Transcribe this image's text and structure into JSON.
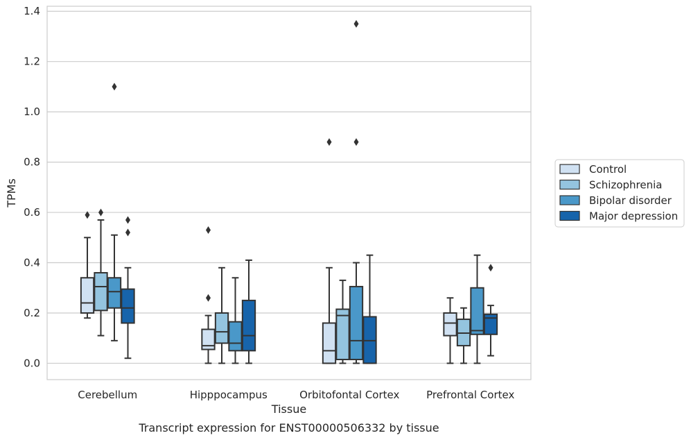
{
  "chart_data": {
    "type": "box",
    "title": "",
    "caption": "Transcript expression for ENST00000506332 by tissue",
    "xlabel": "Tissue",
    "ylabel": "TPMs",
    "ylim": [
      -0.065,
      1.42
    ],
    "yticks": [
      0.0,
      0.2,
      0.4,
      0.6,
      0.8,
      1.0,
      1.2,
      1.4
    ],
    "ytick_labels": [
      "0.0",
      "0.2",
      "0.4",
      "0.6",
      "0.8",
      "1.0",
      "1.2",
      "1.4"
    ],
    "grid": "horizontal",
    "legend_position": "outside-right",
    "categories": [
      "Cerebellum",
      "Hipppocampus",
      "Orbitofontal Cortex",
      "Prefrontal Cortex"
    ],
    "series": [
      {
        "name": "Control",
        "color": "#d0e1f2",
        "boxes": [
          {
            "whisker_low": 0.18,
            "q1": 0.2,
            "median": 0.24,
            "q3": 0.34,
            "whisker_high": 0.5,
            "outliers": [
              0.59
            ]
          },
          {
            "whisker_low": 0.0,
            "q1": 0.055,
            "median": 0.07,
            "q3": 0.135,
            "whisker_high": 0.19,
            "outliers": [
              0.26,
              0.53
            ]
          },
          {
            "whisker_low": 0.0,
            "q1": 0.0,
            "median": 0.05,
            "q3": 0.16,
            "whisker_high": 0.38,
            "outliers": [
              0.88
            ]
          },
          {
            "whisker_low": 0.0,
            "q1": 0.11,
            "median": 0.16,
            "q3": 0.2,
            "whisker_high": 0.26,
            "outliers": []
          }
        ]
      },
      {
        "name": "Schizophrenia",
        "color": "#94c4df",
        "boxes": [
          {
            "whisker_low": 0.11,
            "q1": 0.21,
            "median": 0.305,
            "q3": 0.36,
            "whisker_high": 0.57,
            "outliers": [
              0.6
            ]
          },
          {
            "whisker_low": 0.0,
            "q1": 0.08,
            "median": 0.125,
            "q3": 0.2,
            "whisker_high": 0.38,
            "outliers": []
          },
          {
            "whisker_low": 0.0,
            "q1": 0.015,
            "median": 0.19,
            "q3": 0.215,
            "whisker_high": 0.33,
            "outliers": []
          },
          {
            "whisker_low": 0.0,
            "q1": 0.07,
            "median": 0.12,
            "q3": 0.175,
            "whisker_high": 0.22,
            "outliers": []
          }
        ]
      },
      {
        "name": "Bipolar disorder",
        "color": "#4a98c9",
        "boxes": [
          {
            "whisker_low": 0.09,
            "q1": 0.22,
            "median": 0.285,
            "q3": 0.34,
            "whisker_high": 0.51,
            "outliers": [
              1.1
            ]
          },
          {
            "whisker_low": 0.0,
            "q1": 0.05,
            "median": 0.08,
            "q3": 0.165,
            "whisker_high": 0.34,
            "outliers": []
          },
          {
            "whisker_low": 0.0,
            "q1": 0.015,
            "median": 0.09,
            "q3": 0.305,
            "whisker_high": 0.4,
            "outliers": [
              0.88,
              1.35
            ]
          },
          {
            "whisker_low": 0.0,
            "q1": 0.115,
            "median": 0.13,
            "q3": 0.3,
            "whisker_high": 0.43,
            "outliers": []
          }
        ]
      },
      {
        "name": "Major depression",
        "color": "#1764ab",
        "boxes": [
          {
            "whisker_low": 0.02,
            "q1": 0.16,
            "median": 0.22,
            "q3": 0.295,
            "whisker_high": 0.38,
            "outliers": [
              0.52,
              0.57
            ]
          },
          {
            "whisker_low": 0.0,
            "q1": 0.05,
            "median": 0.11,
            "q3": 0.25,
            "whisker_high": 0.41,
            "outliers": []
          },
          {
            "whisker_low": 0.0,
            "q1": 0.0,
            "median": 0.09,
            "q3": 0.185,
            "whisker_high": 0.43,
            "outliers": []
          },
          {
            "whisker_low": 0.03,
            "q1": 0.115,
            "median": 0.18,
            "q3": 0.195,
            "whisker_high": 0.23,
            "outliers": [
              0.38
            ]
          }
        ]
      }
    ]
  }
}
